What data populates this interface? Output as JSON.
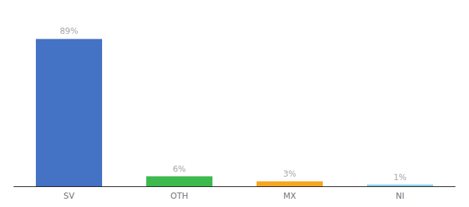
{
  "chart_data": {
    "type": "bar",
    "categories": [
      "SV",
      "OTH",
      "MX",
      "NI"
    ],
    "values": [
      89,
      6,
      3,
      1
    ],
    "value_labels": [
      "89%",
      "6%",
      "3%",
      "1%"
    ],
    "data_labels": true,
    "colors": [
      "#4472c4",
      "#3dba4e",
      "#f5a623",
      "#87ceeb"
    ],
    "ylim": [
      0,
      100
    ],
    "tick_labels": "x",
    "grid": false
  }
}
